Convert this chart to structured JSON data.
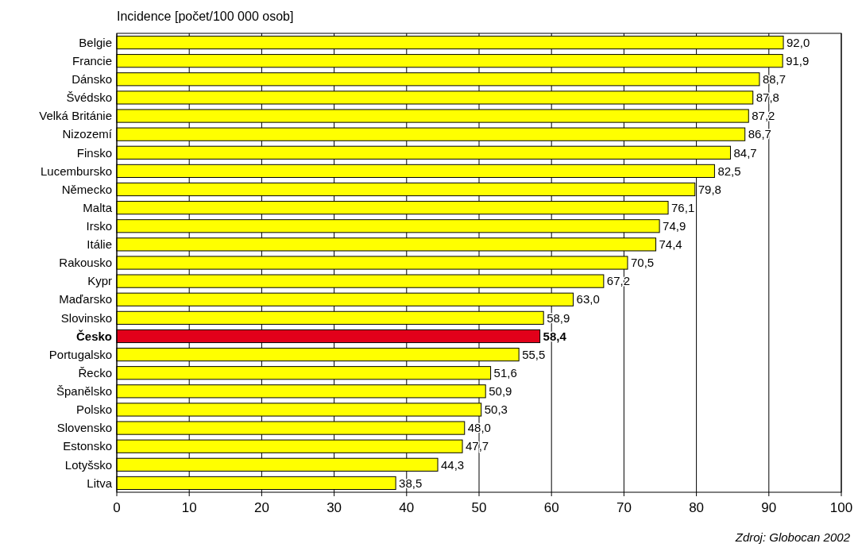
{
  "chart_data": {
    "type": "bar",
    "orientation": "horizontal",
    "ylabel": "Incidence [počet/100 000 osob]",
    "categories": [
      "Belgie",
      "Francie",
      "Dánsko",
      "Švédsko",
      "Velká Británie",
      "Nizozemí",
      "Finsko",
      "Lucembursko",
      "Německo",
      "Malta",
      "Irsko",
      "Itálie",
      "Rakousko",
      "Kypr",
      "Maďarsko",
      "Slovinsko",
      "Česko",
      "Portugalsko",
      "Řecko",
      "Španělsko",
      "Polsko",
      "Slovensko",
      "Estonsko",
      "Lotyšsko",
      "Litva"
    ],
    "values": [
      92.0,
      91.9,
      88.7,
      87.8,
      87.2,
      86.7,
      84.7,
      82.5,
      79.8,
      76.1,
      74.9,
      74.4,
      70.5,
      67.2,
      63.0,
      58.9,
      58.4,
      55.5,
      51.6,
      50.9,
      50.3,
      48.0,
      47.7,
      44.3,
      38.5
    ],
    "value_labels": [
      "92,0",
      "91,9",
      "88,7",
      "87,8",
      "87,2",
      "86,7",
      "84,7",
      "82,5",
      "79,8",
      "76,1",
      "74,9",
      "74,4",
      "70,5",
      "67,2",
      "63,0",
      "58,9",
      "58,4",
      "55,5",
      "51,6",
      "50,9",
      "50,3",
      "48,0",
      "47,7",
      "44,3",
      "38,5"
    ],
    "colors": [
      "#ffff00",
      "#ffff00",
      "#ffff00",
      "#ffff00",
      "#ffff00",
      "#ffff00",
      "#ffff00",
      "#ffff00",
      "#ffff00",
      "#ffff00",
      "#ffff00",
      "#ffff00",
      "#ffff00",
      "#ffff00",
      "#ffff00",
      "#ffff00",
      "#e2001a",
      "#ffff00",
      "#ffff00",
      "#ffff00",
      "#ffff00",
      "#ffff00",
      "#ffff00",
      "#ffff00",
      "#ffff00"
    ],
    "xlim": [
      0,
      100
    ],
    "xticks": [
      0,
      10,
      20,
      30,
      40,
      50,
      60,
      70,
      80,
      90,
      100
    ],
    "grid": "x",
    "annotations": [
      "Zdroj: Globocan 2002"
    ]
  }
}
